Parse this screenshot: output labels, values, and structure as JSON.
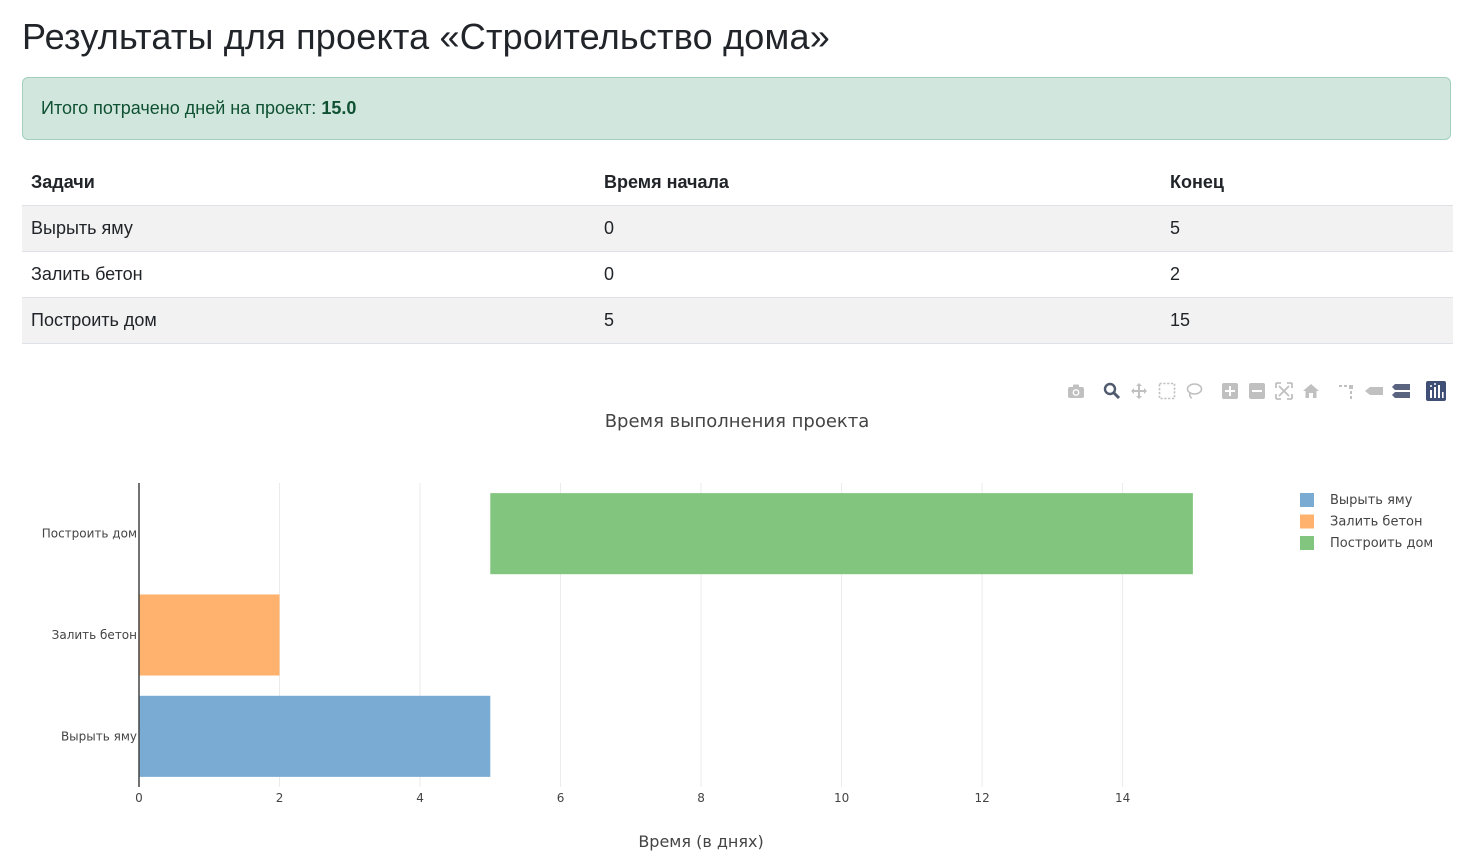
{
  "page": {
    "title": "Результаты для проекта «Строительство дома»"
  },
  "summary": {
    "label": "Итого потрачено дней на проект:",
    "value": "15.0"
  },
  "table": {
    "headers": [
      "Задачи",
      "Время начала",
      "Конец"
    ],
    "rows": [
      [
        "Вырыть яму",
        "0",
        "5"
      ],
      [
        "Залить бетон",
        "0",
        "2"
      ],
      [
        "Построить дом",
        "5",
        "15"
      ]
    ]
  },
  "modebar": {
    "icons": [
      "camera-icon",
      "zoom-icon",
      "pan-icon",
      "box-select-icon",
      "lasso-select-icon",
      "zoom-in-icon",
      "zoom-out-icon",
      "autoscale-icon",
      "reset-axes-icon",
      "spike-lines-icon",
      "hover-closest-icon",
      "hover-compare-icon",
      "plotly-logo-icon"
    ]
  },
  "chart_data": {
    "type": "bar",
    "orientation": "horizontal",
    "title": "Время выполнения проекта",
    "xlabel": "Время (в днях)",
    "ylabel": "",
    "xlim": [
      0,
      15.5
    ],
    "xticks": [
      0,
      2,
      4,
      6,
      8,
      10,
      12,
      14
    ],
    "categories": [
      "Вырыть яму",
      "Залить бетон",
      "Построить дом"
    ],
    "series": [
      {
        "name": "Вырыть яму",
        "category": "Вырыть яму",
        "start": 0,
        "end": 5,
        "color": "#7aabd2"
      },
      {
        "name": "Залить бетон",
        "category": "Залить бетон",
        "start": 0,
        "end": 2,
        "color": "#ffb26e"
      },
      {
        "name": "Построить дом",
        "category": "Построить дом",
        "start": 5,
        "end": 15,
        "color": "#81c57e"
      }
    ],
    "grid": true,
    "legend": "top-right"
  }
}
